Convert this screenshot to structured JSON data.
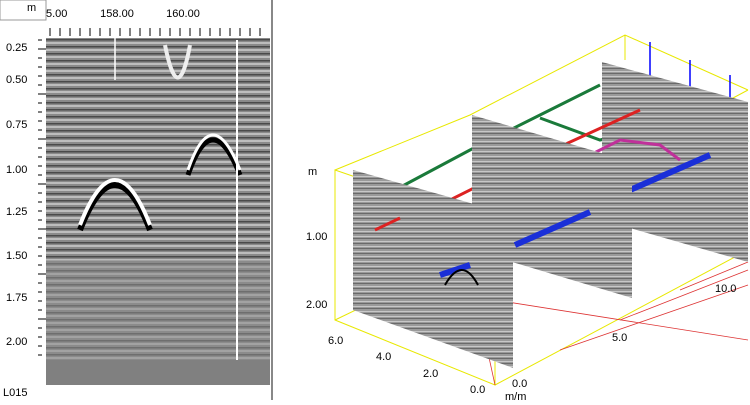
{
  "left_panel": {
    "unit": "m",
    "x_labels": [
      "5.00",
      "158.00",
      "160.00"
    ],
    "depth_labels": [
      "0.25",
      "0.50",
      "0.75",
      "1.00",
      "1.25",
      "1.50",
      "1.75",
      "2.00"
    ],
    "line_name": "L015"
  },
  "right_panel": {
    "depth_unit": "m",
    "depth_labels": [
      "1.00",
      "2.00"
    ],
    "y_labels": [
      "6.0",
      "4.0",
      "2.0",
      "0.0"
    ],
    "x_labels": [
      "0.0",
      "5.0",
      "10.0"
    ],
    "x_unit": "m/m"
  }
}
